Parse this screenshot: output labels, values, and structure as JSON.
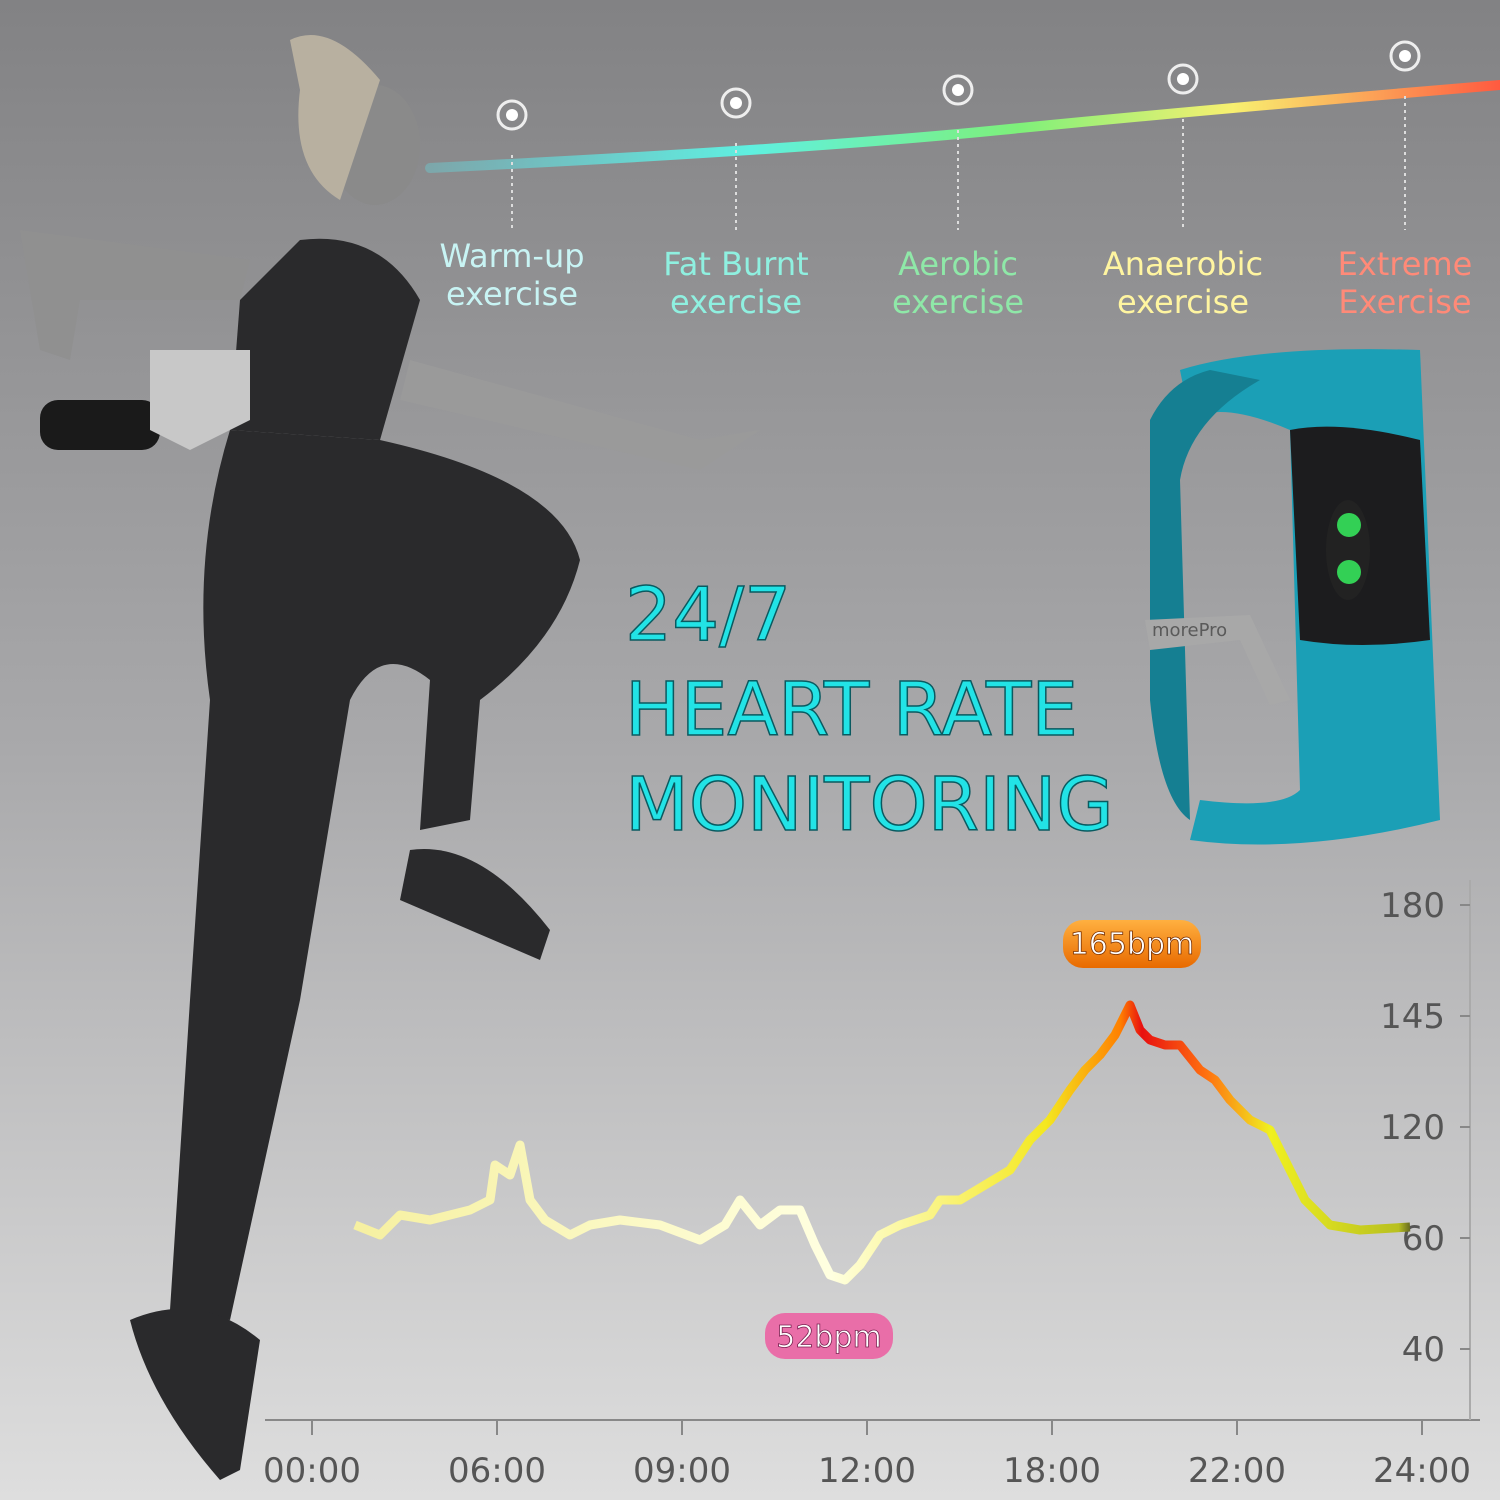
{
  "zones": [
    {
      "lines": [
        "Warm-up",
        "exercise"
      ],
      "color": "#c8f4f4"
    },
    {
      "lines": [
        "Fat Burnt",
        "exercise"
      ],
      "color": "#8ff0e0"
    },
    {
      "lines": [
        "Aerobic",
        "exercise"
      ],
      "color": "#8fe8a8"
    },
    {
      "lines": [
        "Anaerobic",
        "exercise"
      ],
      "color": "#fff5a0"
    },
    {
      "lines": [
        "Extreme",
        "Exercise"
      ],
      "color": "#ff8a78"
    }
  ],
  "headline": [
    "24/7",
    "HEART RATE",
    "MONITORING"
  ],
  "band_brand": "morePro",
  "heart_chart": {
    "y_labels": [
      "180",
      "145",
      "120",
      "60",
      "40"
    ],
    "x_labels": [
      "00:00",
      "06:00",
      "09:00",
      "12:00",
      "18:00",
      "22:00",
      "24:00"
    ],
    "peak_label": "165bpm",
    "low_label": "52bpm"
  }
}
